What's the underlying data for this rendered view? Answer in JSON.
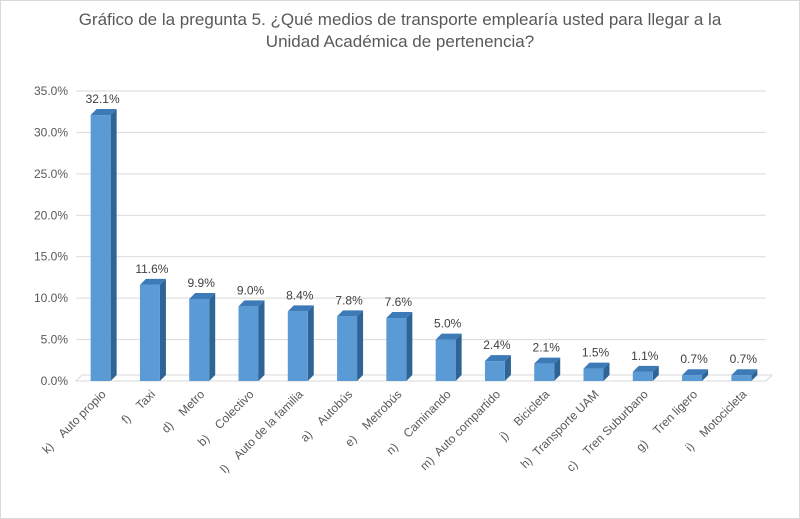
{
  "chart_data": {
    "type": "bar",
    "title_line1": "Gráfico de la pregunta 5. ¿Qué medios de transporte emplearía usted para llegar a la",
    "title_line2": "Unidad Académica de pertenencia?",
    "categories": [
      "k)    Auto propio",
      "f)    Taxi",
      "d)    Metro",
      "b)    Colectivo",
      "l)    Auto de la familia",
      "a)    Autobús",
      "e)    Metrobús",
      "n)    Caminando",
      "m)  Auto compartido",
      "j)    Bicicleta",
      "h)  Transporte UAM",
      "c)    Tren Suburbano",
      "g)    Tren ligero",
      "i)    Motocicleta"
    ],
    "values": [
      32.1,
      11.6,
      9.9,
      9.0,
      8.4,
      7.8,
      7.6,
      5.0,
      2.4,
      2.1,
      1.5,
      1.1,
      0.7,
      0.7
    ],
    "data_labels": [
      "32.1%",
      "11.6%",
      "9.9%",
      "9.0%",
      "8.4%",
      "7.8%",
      "7.6%",
      "5.0%",
      "2.4%",
      "2.1%",
      "1.5%",
      "1.1%",
      "0.7%",
      "0.7%"
    ],
    "y_ticks": [
      "0.0%",
      "5.0%",
      "10.0%",
      "15.0%",
      "20.0%",
      "25.0%",
      "30.0%",
      "35.0%"
    ],
    "ylim": [
      0,
      35
    ],
    "grid": true,
    "bar_color": "#5b9bd5"
  }
}
